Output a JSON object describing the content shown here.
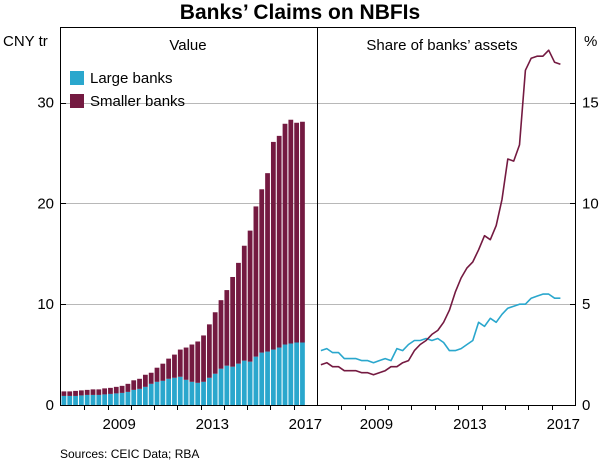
{
  "chart_data": {
    "type": "bar",
    "title": "Banks’ Claims on NBFIs",
    "source": "Sources: CEIC Data; RBA",
    "left_unit": "CNY tr",
    "right_unit": "%",
    "x_ticks": [
      "2009",
      "2013",
      "2017"
    ],
    "panels": [
      {
        "name": "value-panel",
        "title": "Value",
        "type": "stacked-bar",
        "ylim": [
          0,
          37.5
        ],
        "y_ticks": [
          "0",
          "10",
          "20",
          "30"
        ],
        "legend_position": "top-left",
        "legend": [
          "Large banks",
          "Smaller banks"
        ],
        "x": [
          2007.25,
          2007.5,
          2007.75,
          2008.0,
          2008.25,
          2008.5,
          2008.75,
          2009.0,
          2009.25,
          2009.5,
          2009.75,
          2010.0,
          2010.25,
          2010.5,
          2010.75,
          2011.0,
          2011.25,
          2011.5,
          2011.75,
          2012.0,
          2012.25,
          2012.5,
          2012.75,
          2013.0,
          2013.25,
          2013.5,
          2013.75,
          2014.0,
          2014.25,
          2014.5,
          2014.75,
          2015.0,
          2015.25,
          2015.5,
          2015.75,
          2016.0,
          2016.25,
          2016.5,
          2016.75,
          2017.0,
          2017.25,
          2017.5
        ],
        "series": [
          {
            "name": "Large banks",
            "color": "#2aa7cd",
            "values": [
              0.9,
              0.9,
              0.9,
              0.95,
              1.0,
              1.0,
              1.0,
              1.05,
              1.1,
              1.15,
              1.2,
              1.3,
              1.5,
              1.6,
              1.8,
              2.1,
              2.3,
              2.4,
              2.6,
              2.7,
              2.8,
              2.5,
              2.3,
              2.2,
              2.3,
              2.7,
              3.1,
              3.6,
              3.9,
              3.8,
              4.1,
              4.4,
              4.3,
              4.8,
              5.2,
              5.3,
              5.5,
              5.7,
              6.0,
              6.1,
              6.2,
              6.2
            ]
          },
          {
            "name": "Smaller banks",
            "color": "#741a41",
            "values": [
              0.45,
              0.45,
              0.5,
              0.5,
              0.5,
              0.55,
              0.55,
              0.6,
              0.6,
              0.65,
              0.7,
              0.8,
              0.95,
              1.0,
              1.2,
              1.1,
              1.4,
              1.7,
              2.0,
              2.3,
              2.7,
              3.2,
              3.7,
              4.1,
              4.6,
              5.3,
              6.1,
              6.8,
              7.5,
              8.9,
              10.0,
              11.4,
              13.0,
              14.9,
              16.2,
              17.7,
              20.6,
              21.0,
              21.9,
              22.2,
              21.8,
              21.9
            ]
          }
        ]
      },
      {
        "name": "share-panel",
        "title": "Share of banks’ assets",
        "type": "line",
        "ylim": [
          0,
          18.75
        ],
        "y_ticks": [
          "0",
          "5",
          "10",
          "15"
        ],
        "x": [
          2007.25,
          2007.5,
          2007.75,
          2008.0,
          2008.25,
          2008.5,
          2008.75,
          2009.0,
          2009.25,
          2009.5,
          2009.75,
          2010.0,
          2010.25,
          2010.5,
          2010.75,
          2011.0,
          2011.25,
          2011.5,
          2011.75,
          2012.0,
          2012.25,
          2012.5,
          2012.75,
          2013.0,
          2013.25,
          2013.5,
          2013.75,
          2014.0,
          2014.25,
          2014.5,
          2014.75,
          2015.0,
          2015.25,
          2015.5,
          2015.75,
          2016.0,
          2016.25,
          2016.5,
          2016.75,
          2017.0,
          2017.25,
          2017.5
        ],
        "series": [
          {
            "name": "Large banks",
            "color": "#2aa7cd",
            "values": [
              2.7,
              2.8,
              2.6,
              2.6,
              2.3,
              2.3,
              2.3,
              2.2,
              2.2,
              2.1,
              2.2,
              2.3,
              2.2,
              2.8,
              2.7,
              3.0,
              3.2,
              3.2,
              3.3,
              3.2,
              3.3,
              3.1,
              2.7,
              2.7,
              2.8,
              3.0,
              3.2,
              4.1,
              3.9,
              4.3,
              4.1,
              4.5,
              4.8,
              4.9,
              5.0,
              5.0,
              5.3,
              5.4,
              5.5,
              5.5,
              5.3,
              5.3
            ]
          },
          {
            "name": "Smaller banks",
            "color": "#741a41",
            "values": [
              2.0,
              2.1,
              1.9,
              1.9,
              1.7,
              1.7,
              1.7,
              1.6,
              1.6,
              1.5,
              1.6,
              1.7,
              1.9,
              1.9,
              2.1,
              2.2,
              2.7,
              3.0,
              3.2,
              3.5,
              3.7,
              4.1,
              4.7,
              5.6,
              6.3,
              6.8,
              7.1,
              7.7,
              8.4,
              8.2,
              8.9,
              10.2,
              12.2,
              12.1,
              12.9,
              16.6,
              17.2,
              17.3,
              17.3,
              17.6,
              17.0,
              16.9
            ]
          }
        ]
      }
    ]
  }
}
